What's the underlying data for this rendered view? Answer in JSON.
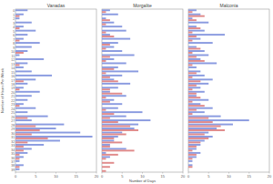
{
  "chart_data": [
    {
      "type": "bar",
      "orientation": "horizontal",
      "title": "Vanadas",
      "y_label": "Number of Hours Per Week",
      "categories": [
        "0",
        "1",
        "2",
        "3",
        "4",
        "5",
        "6",
        "7",
        "8",
        "9",
        "10",
        "11",
        "12",
        "13",
        "14",
        "15",
        "16",
        "17",
        "18",
        "19",
        "20",
        "21",
        "22",
        "23",
        "24",
        "25",
        "26",
        "27",
        "28",
        "29",
        "30",
        "31",
        "32",
        "33",
        "34",
        "35",
        "36",
        "37",
        "38",
        "39"
      ],
      "series": [
        {
          "color": "#8a9be0",
          "values": [
            3,
            2,
            1,
            4,
            2,
            5,
            3,
            2,
            6,
            4,
            3,
            1,
            7,
            3,
            2,
            4,
            9,
            5,
            3,
            2,
            6,
            4,
            3,
            2,
            5,
            3,
            8,
            4,
            12,
            10,
            16,
            19,
            11,
            7,
            4,
            3,
            2,
            1,
            2,
            1
          ]
        },
        {
          "color": "#e08a8a",
          "values": [
            0,
            1,
            0,
            0,
            1,
            0,
            0,
            1,
            0,
            0,
            2,
            0,
            0,
            1,
            0,
            0,
            0,
            2,
            0,
            1,
            0,
            0,
            0,
            1,
            0,
            0,
            3,
            0,
            5,
            6,
            4,
            8,
            3,
            2,
            2,
            1,
            1,
            0,
            1,
            0
          ]
        }
      ],
      "xlim": [
        0,
        20
      ],
      "xticks": [
        0,
        5,
        10,
        15,
        20
      ],
      "grid": false
    },
    {
      "type": "bar",
      "orientation": "horizontal",
      "title": "Morgalite",
      "x_label": "Number of Days",
      "tick_labels": "x",
      "categories": [
        "0",
        "1",
        "2",
        "3",
        "4",
        "5",
        "6",
        "7",
        "8",
        "9",
        "10",
        "11",
        "12",
        "13",
        "14",
        "15",
        "16",
        "17",
        "18",
        "19",
        "20",
        "21",
        "22",
        "23",
        "24",
        "25",
        "26",
        "27",
        "28",
        "29",
        "30",
        "31",
        "32",
        "33",
        "34",
        "35",
        "36",
        "37",
        "38",
        "39"
      ],
      "series": [
        {
          "color": "#8a9be0",
          "values": [
            2,
            4,
            1,
            3,
            5,
            6,
            2,
            7,
            4,
            3,
            5,
            8,
            3,
            6,
            4,
            9,
            5,
            3,
            7,
            4,
            2,
            6,
            3,
            5,
            4,
            10,
            6,
            12,
            9,
            8,
            5,
            4,
            3,
            2,
            6,
            1,
            2,
            0,
            0,
            0
          ]
        },
        {
          "color": "#e08a8a",
          "values": [
            1,
            0,
            2,
            1,
            0,
            1,
            3,
            0,
            2,
            1,
            0,
            2,
            1,
            0,
            3,
            1,
            2,
            4,
            0,
            2,
            5,
            1,
            2,
            0,
            1,
            3,
            2,
            4,
            7,
            9,
            6,
            3,
            5,
            2,
            8,
            4,
            1,
            3,
            2,
            1
          ]
        }
      ],
      "xlim": [
        0,
        20
      ],
      "xticks": [
        0,
        5,
        10,
        15,
        20
      ],
      "grid": false
    },
    {
      "type": "bar",
      "orientation": "horizontal",
      "title": "Malconia",
      "tick_labels": "x",
      "categories": [
        "0",
        "1",
        "2",
        "3",
        "4",
        "5",
        "6",
        "7",
        "8",
        "9",
        "10",
        "11",
        "12",
        "13",
        "14",
        "15",
        "16",
        "17",
        "18",
        "19",
        "20",
        "21",
        "22",
        "23",
        "24",
        "25",
        "26",
        "27",
        "28",
        "29",
        "30",
        "31",
        "32",
        "33",
        "34",
        "35",
        "36",
        "37",
        "38",
        "39"
      ],
      "series": [
        {
          "color": "#8a9be0",
          "values": [
            2,
            3,
            1,
            5,
            2,
            4,
            9,
            3,
            6,
            2,
            4,
            5,
            3,
            7,
            2,
            3,
            4,
            6,
            5,
            3,
            4,
            2,
            5,
            3,
            6,
            4,
            8,
            15,
            11,
            7,
            5,
            6,
            4,
            3,
            2,
            3,
            2,
            1,
            1,
            0
          ]
        },
        {
          "color": "#e08a8a",
          "values": [
            1,
            4,
            2,
            0,
            3,
            1,
            2,
            1,
            0,
            3,
            1,
            2,
            4,
            1,
            0,
            2,
            1,
            3,
            2,
            1,
            2,
            3,
            1,
            4,
            2,
            1,
            5,
            6,
            8,
            9,
            4,
            5,
            3,
            2,
            1,
            2,
            1,
            0,
            1,
            0
          ]
        }
      ],
      "xlim": [
        0,
        20
      ],
      "xticks": [
        0,
        5,
        10,
        15,
        20
      ],
      "grid": false
    }
  ]
}
